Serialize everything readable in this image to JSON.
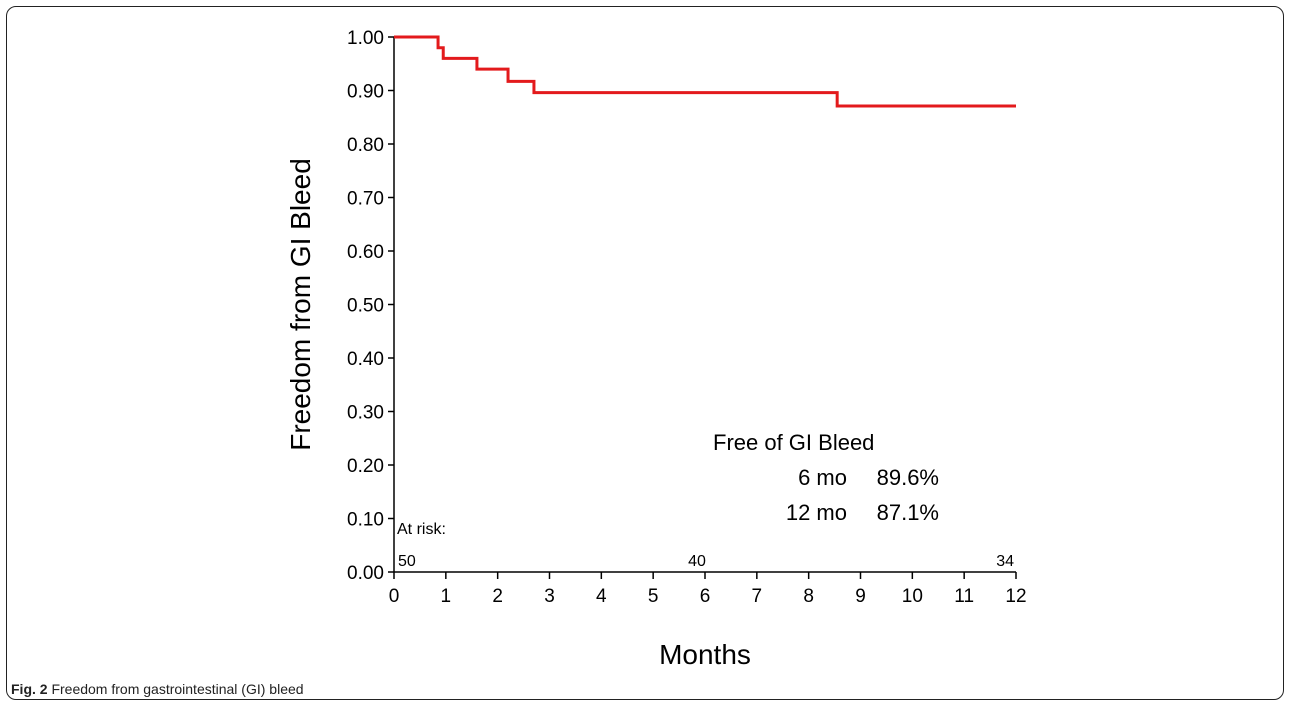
{
  "chart_data": {
    "type": "line",
    "step": true,
    "xlabel": "Months",
    "ylabel": "Freedom from GI Bleed",
    "xlim": [
      0,
      12
    ],
    "ylim": [
      0,
      1
    ],
    "x_ticks": [
      0,
      1,
      2,
      3,
      4,
      5,
      6,
      7,
      8,
      9,
      10,
      11,
      12
    ],
    "y_ticks": [
      "0.00",
      "0.10",
      "0.20",
      "0.30",
      "0.40",
      "0.50",
      "0.60",
      "0.70",
      "0.80",
      "0.90",
      "1.00"
    ],
    "grid": false,
    "series": [
      {
        "color": "#e31a1c",
        "x": [
          0,
          0.85,
          0.88,
          0.95,
          1.6,
          2.2,
          2.7,
          8.55,
          12
        ],
        "y": [
          1.0,
          0.98,
          0.98,
          0.96,
          0.94,
          0.917,
          0.896,
          0.871,
          0.871
        ]
      }
    ],
    "annotation": {
      "title": "Free of GI Bleed",
      "rows": [
        {
          "label": "6 mo",
          "value": "89.6%"
        },
        {
          "label": "12 mo",
          "value": "87.1%"
        }
      ]
    },
    "at_risk": {
      "label": "At risk:",
      "points": [
        {
          "x": 0,
          "n": "50"
        },
        {
          "x": 6,
          "n": "40"
        },
        {
          "x": 12,
          "n": "34"
        }
      ]
    }
  },
  "caption": {
    "fig_label": "Fig. 2",
    "text": "Freedom from gastrointestinal (GI) bleed"
  }
}
